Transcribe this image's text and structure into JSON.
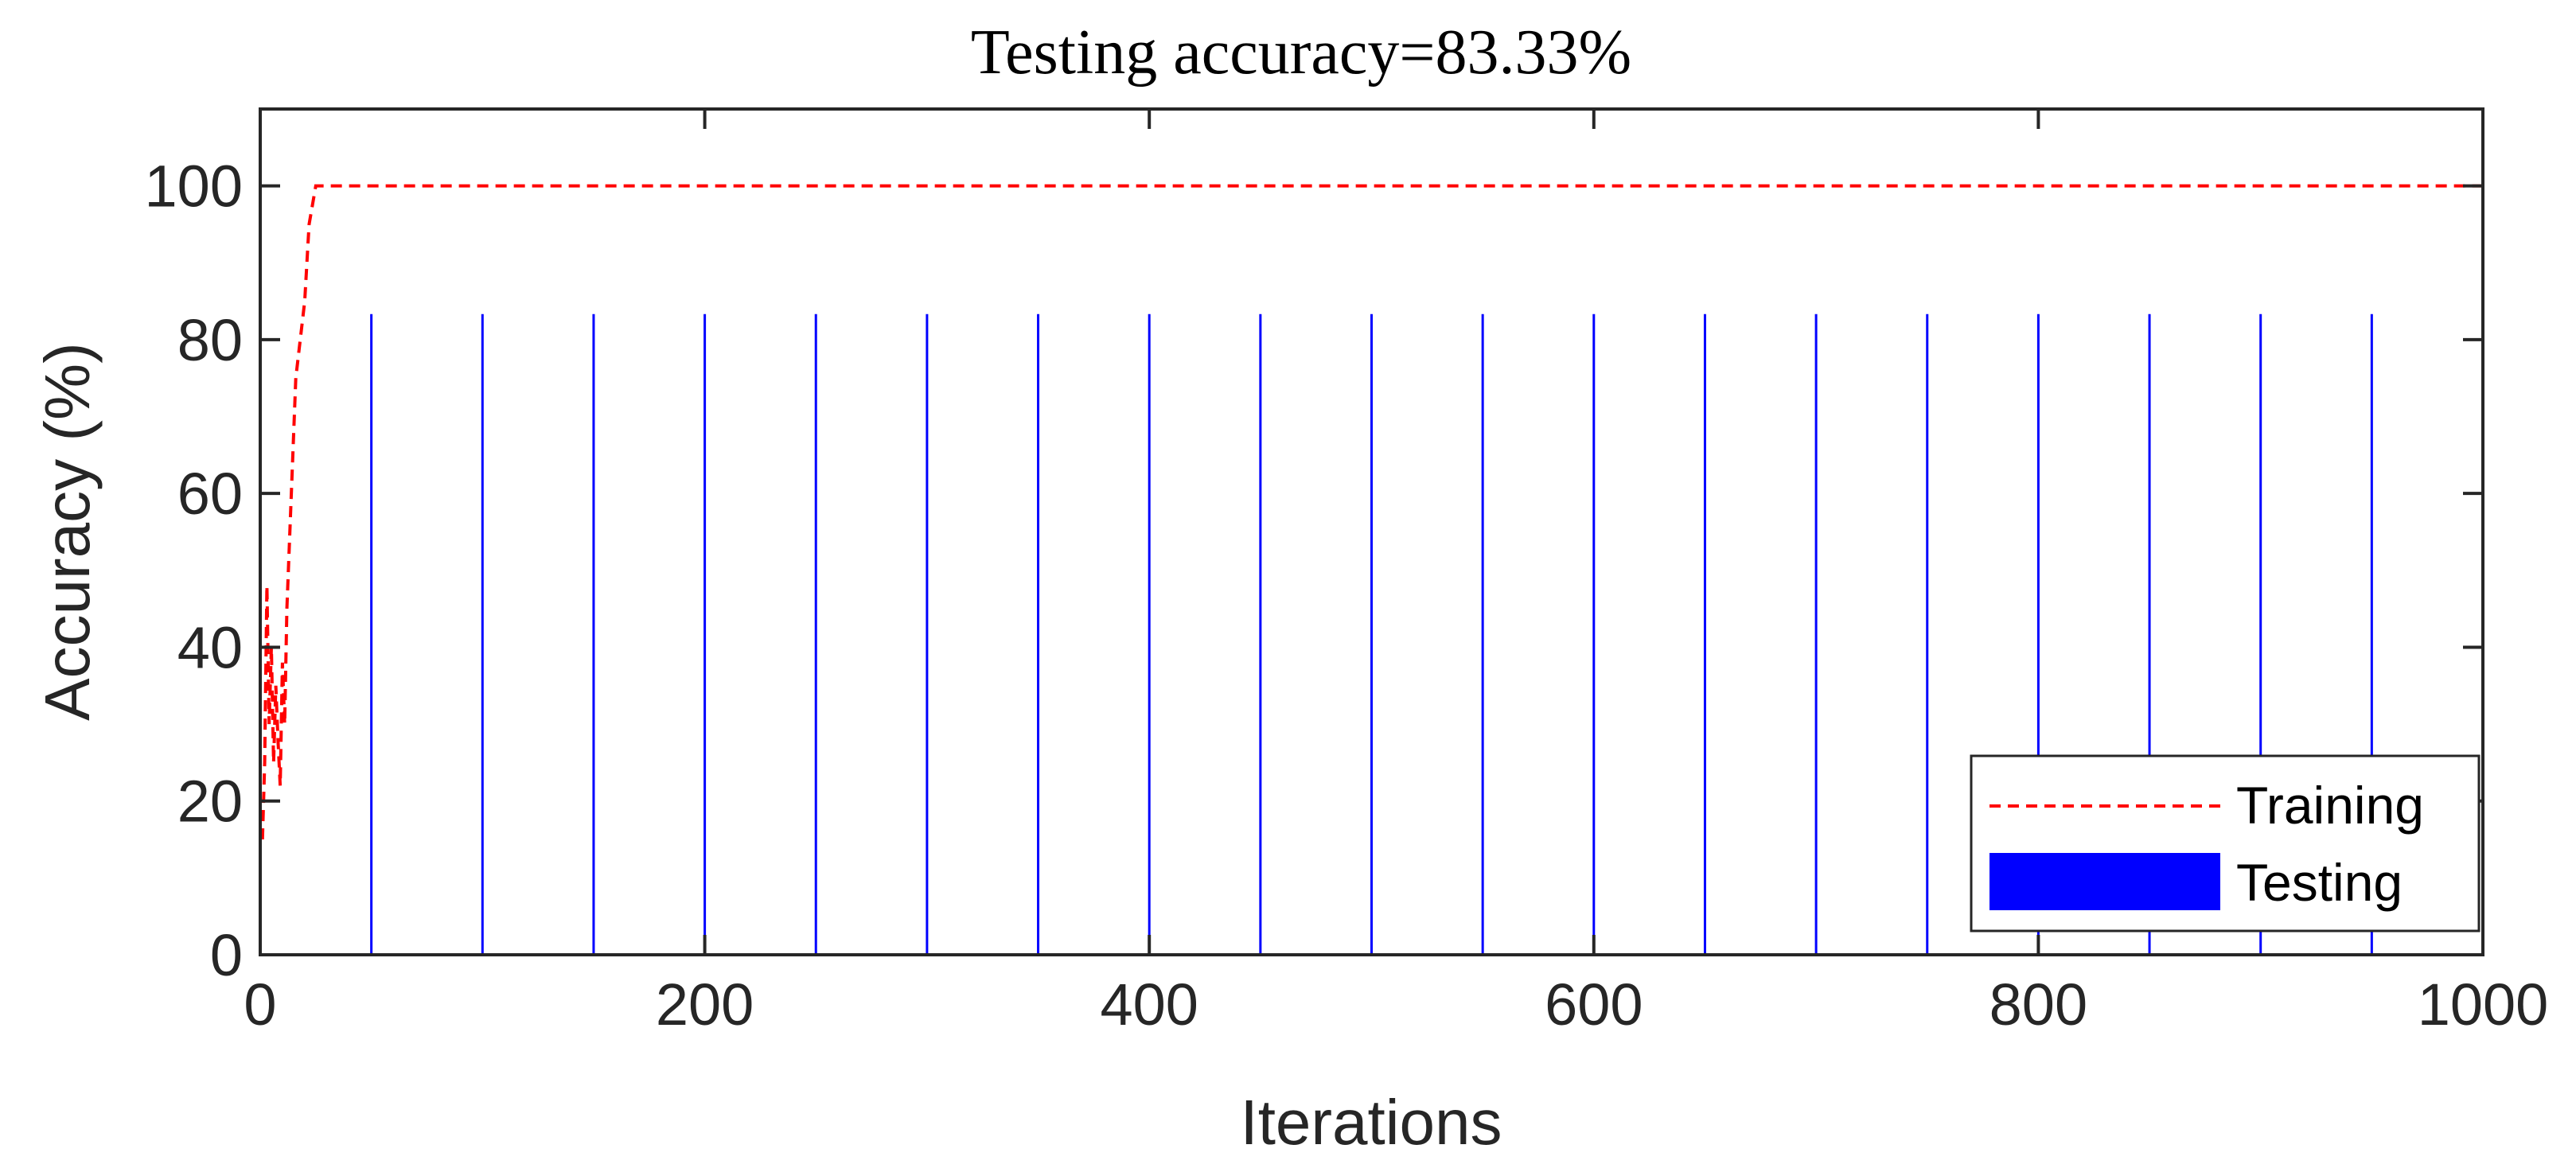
{
  "chart_data": {
    "type": "line",
    "title": "Testing accuracy=83.33%",
    "xlabel": "Iterations",
    "ylabel": "Accuracy (%)",
    "xlim": [
      0,
      1000
    ],
    "ylim": [
      0,
      110
    ],
    "xticks": [
      0,
      200,
      400,
      600,
      800,
      1000
    ],
    "yticks": [
      0,
      20,
      40,
      60,
      80,
      100
    ],
    "grid": false,
    "legend_position": "bottom-right",
    "series": [
      {
        "name": "Training",
        "style": "dashed-line",
        "color": "#ff0000",
        "x": [
          1,
          2,
          3,
          4,
          5,
          6,
          7,
          8,
          9,
          10,
          11,
          12,
          14,
          16,
          18,
          20,
          22,
          25,
          1000
        ],
        "y": [
          15,
          25,
          48,
          30,
          40,
          25,
          35,
          28,
          22,
          38,
          30,
          45,
          60,
          75,
          80,
          85,
          95,
          100,
          100
        ]
      },
      {
        "name": "Testing",
        "style": "stem",
        "color": "#0000ff",
        "x": [
          0,
          50,
          100,
          150,
          200,
          250,
          300,
          350,
          400,
          450,
          500,
          550,
          600,
          650,
          700,
          750,
          800,
          850,
          900,
          950,
          1000
        ],
        "y": [
          25,
          83.33,
          83.33,
          83.33,
          83.33,
          83.33,
          83.33,
          83.33,
          83.33,
          83.33,
          83.33,
          83.33,
          83.33,
          83.33,
          83.33,
          83.33,
          83.33,
          83.33,
          83.33,
          83.33,
          83.33
        ]
      }
    ]
  }
}
